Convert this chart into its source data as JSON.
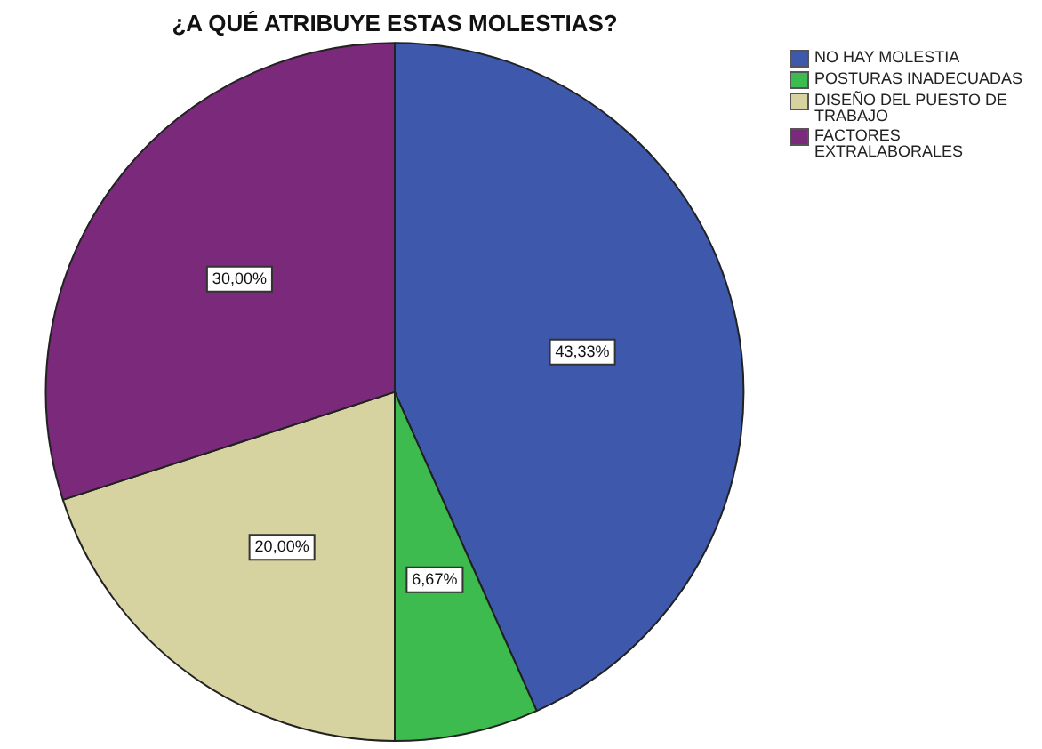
{
  "chart_data": {
    "type": "pie",
    "title": "¿A QUÉ ATRIBUYE ESTAS MOLESTIAS?",
    "categories": [
      "NO HAY MOLESTIA",
      "POSTURAS INADECUADAS",
      "DISEÑO DEL PUESTO DE TRABAJO",
      "FACTORES EXTRALABORALES"
    ],
    "values": [
      43.33,
      6.67,
      20.0,
      30.0
    ],
    "colors": [
      "#3e58ac",
      "#3dbb4e",
      "#d6d3a1",
      "#7b2a7b"
    ],
    "value_labels": [
      "43,33%",
      "6,67%",
      "20,00%",
      "30,00%"
    ],
    "legend": "top right"
  }
}
